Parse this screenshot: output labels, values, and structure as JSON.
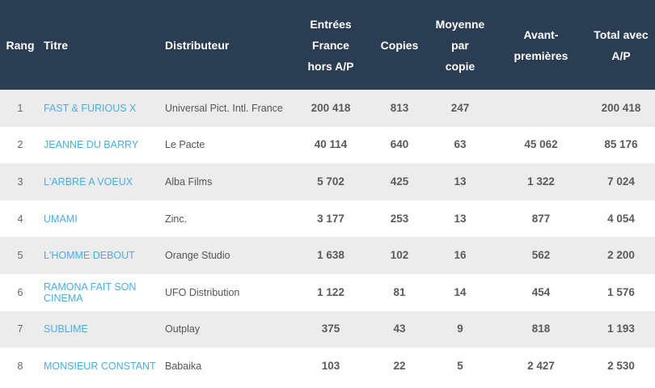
{
  "headers": {
    "rank": "Rang",
    "title": "Titre",
    "distributor": "Distributeur",
    "entries": [
      "Entrées",
      "France",
      "hors A/P"
    ],
    "copies": "Copies",
    "average": [
      "Moyenne",
      "par",
      "copie"
    ],
    "previews": [
      "Avant-",
      "premières"
    ],
    "total": [
      "Total avec",
      "A/P"
    ]
  },
  "rows": [
    {
      "rank": "1",
      "title": "FAST & FURIOUS X",
      "distributor": "Universal Pict. Intl. France",
      "entries": "200 418",
      "copies": "813",
      "average": "247",
      "previews": "",
      "total": "200 418"
    },
    {
      "rank": "2",
      "title": "JEANNE DU BARRY",
      "distributor": "Le Pacte",
      "entries": "40 114",
      "copies": "640",
      "average": "63",
      "previews": "45 062",
      "total": "85 176"
    },
    {
      "rank": "3",
      "title": "L'ARBRE A VOEUX",
      "distributor": "Alba Films",
      "entries": "5 702",
      "copies": "425",
      "average": "13",
      "previews": "1 322",
      "total": "7 024"
    },
    {
      "rank": "4",
      "title": "UMAMI",
      "distributor": "Zinc.",
      "entries": "3 177",
      "copies": "253",
      "average": "13",
      "previews": "877",
      "total": "4 054"
    },
    {
      "rank": "5",
      "title": "L'HOMME DEBOUT",
      "distributor": "Orange Studio",
      "entries": "1 638",
      "copies": "102",
      "average": "16",
      "previews": "562",
      "total": "2 200"
    },
    {
      "rank": "6",
      "title": "RAMONA FAIT SON CINEMA",
      "distributor": "UFO Distribution",
      "entries": "1 122",
      "copies": "81",
      "average": "14",
      "previews": "454",
      "total": "1 576"
    },
    {
      "rank": "7",
      "title": "SUBLIME",
      "distributor": "Outplay",
      "entries": "375",
      "copies": "43",
      "average": "9",
      "previews": "818",
      "total": "1 193"
    },
    {
      "rank": "8",
      "title": "MONSIEUR CONSTANT",
      "distributor": "Babaika",
      "entries": "103",
      "copies": "22",
      "average": "5",
      "previews": "2 427",
      "total": "2 530"
    }
  ],
  "colors": {
    "header_bg": "#2b3d52",
    "row_alt_bg": "#ececec",
    "link": "#4aaee5"
  }
}
